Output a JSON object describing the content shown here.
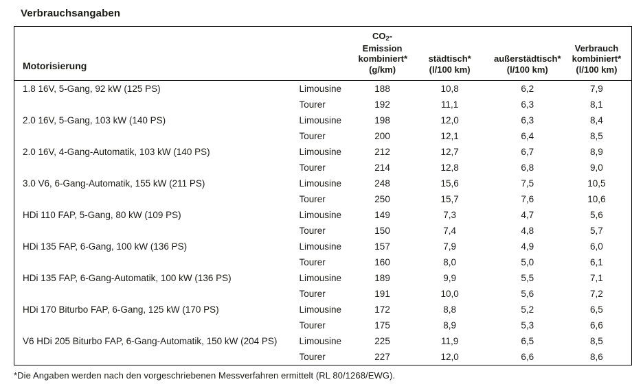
{
  "title": "Verbrauchsangaben",
  "footnote": "*Die Angaben werden nach den vorgeschriebenen Messverfahren ermittelt (RL 80/1268/EWG).",
  "header": {
    "motorisierung": "Motorisierung",
    "co2": {
      "prefix": "CO",
      "sub": "2",
      "suffix": "-Emission",
      "line2": "kombiniert*",
      "unit": "(g/km)"
    },
    "urban": {
      "line1": "städtisch*",
      "unit": "(l/100 km)"
    },
    "extra_urban": {
      "line1": "außerstädtisch*",
      "unit": "(l/100 km)"
    },
    "combined": {
      "line1": "Verbrauch",
      "line2": "kombiniert*",
      "unit": "(l/100 km)"
    }
  },
  "engines": [
    {
      "name": "1.8 16V, 5-Gang, 92 kW (125 PS)",
      "variants": [
        {
          "body": "Limousine",
          "co2": "188",
          "urban": "10,8",
          "extra_urban": "6,2",
          "combined": "7,9"
        },
        {
          "body": "Tourer",
          "co2": "192",
          "urban": "11,1",
          "extra_urban": "6,3",
          "combined": "8,1"
        }
      ]
    },
    {
      "name": "2.0 16V, 5-Gang, 103 kW (140 PS)",
      "variants": [
        {
          "body": "Limousine",
          "co2": "198",
          "urban": "12,0",
          "extra_urban": "6,3",
          "combined": "8,4"
        },
        {
          "body": "Tourer",
          "co2": "200",
          "urban": "12,1",
          "extra_urban": "6,4",
          "combined": "8,5"
        }
      ]
    },
    {
      "name": "2.0 16V, 4-Gang-Automatik, 103 kW (140 PS)",
      "variants": [
        {
          "body": "Limousine",
          "co2": "212",
          "urban": "12,7",
          "extra_urban": "6,7",
          "combined": "8,9"
        },
        {
          "body": "Tourer",
          "co2": "214",
          "urban": "12,8",
          "extra_urban": "6,8",
          "combined": "9,0"
        }
      ]
    },
    {
      "name": "3.0 V6, 6-Gang-Automatik, 155 kW (211 PS)",
      "variants": [
        {
          "body": "Limousine",
          "co2": "248",
          "urban": "15,6",
          "extra_urban": "7,5",
          "combined": "10,5"
        },
        {
          "body": "Tourer",
          "co2": "250",
          "urban": "15,7",
          "extra_urban": "7,6",
          "combined": "10,6"
        }
      ]
    },
    {
      "name": "HDi 110 FAP, 5-Gang, 80 kW (109 PS)",
      "variants": [
        {
          "body": "Limousine",
          "co2": "149",
          "urban": "7,3",
          "extra_urban": "4,7",
          "combined": "5,6"
        },
        {
          "body": "Tourer",
          "co2": "150",
          "urban": "7,4",
          "extra_urban": "4,8",
          "combined": "5,7"
        }
      ]
    },
    {
      "name": "HDi 135 FAP, 6-Gang, 100 kW (136 PS)",
      "variants": [
        {
          "body": "Limousine",
          "co2": "157",
          "urban": "7,9",
          "extra_urban": "4,9",
          "combined": "6,0"
        },
        {
          "body": "Tourer",
          "co2": "160",
          "urban": "8,0",
          "extra_urban": "5,0",
          "combined": "6,1"
        }
      ]
    },
    {
      "name": "HDi 135 FAP, 6-Gang-Automatik, 100 kW (136 PS)",
      "variants": [
        {
          "body": "Limousine",
          "co2": "189",
          "urban": "9,9",
          "extra_urban": "5,5",
          "combined": "7,1"
        },
        {
          "body": "Tourer",
          "co2": "191",
          "urban": "10,0",
          "extra_urban": "5,6",
          "combined": "7,2"
        }
      ]
    },
    {
      "name": "HDi 170 Biturbo FAP, 6-Gang, 125 kW (170 PS)",
      "variants": [
        {
          "body": "Limousine",
          "co2": "172",
          "urban": "8,8",
          "extra_urban": "5,2",
          "combined": "6,5"
        },
        {
          "body": "Tourer",
          "co2": "175",
          "urban": "8,9",
          "extra_urban": "5,3",
          "combined": "6,6"
        }
      ]
    },
    {
      "name": "V6 HDi 205 Biturbo FAP, 6-Gang-Automatik, 150 kW (204 PS)",
      "variants": [
        {
          "body": "Limousine",
          "co2": "225",
          "urban": "11,9",
          "extra_urban": "6,5",
          "combined": "8,5"
        },
        {
          "body": "Tourer",
          "co2": "227",
          "urban": "12,0",
          "extra_urban": "6,6",
          "combined": "8,6"
        }
      ]
    }
  ]
}
